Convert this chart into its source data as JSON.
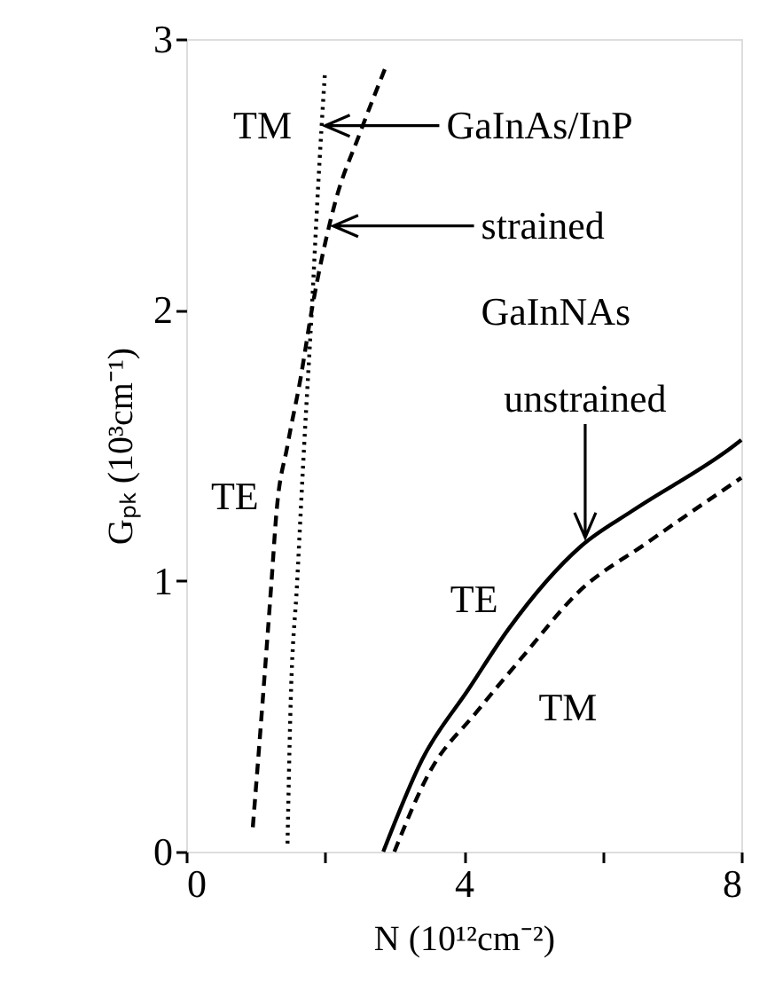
{
  "chart_data": {
    "type": "line",
    "xlabel": "N (10¹²cm⁻²)",
    "ylabel": "Gₚₖ (10³cm⁻¹)",
    "xlim": [
      0,
      8
    ],
    "ylim": [
      0,
      3
    ],
    "xticks": [
      0,
      {
        "value": 2,
        "label": null
      },
      4,
      {
        "value": 6,
        "label": null
      },
      8
    ],
    "yticks": [
      0,
      1,
      2,
      3
    ],
    "grid": false,
    "legend": false,
    "marker": "none",
    "series": [
      {
        "color": "#000000",
        "line_style": "dotted",
        "x": [
          1.46,
          1.5,
          1.6,
          1.7,
          1.81,
          1.9,
          2.0
        ],
        "values": [
          0.03,
          0.5,
          1.0,
          1.5,
          2.0,
          2.45,
          2.88
        ]
      },
      {
        "color": "#000000",
        "line_style": "dashed",
        "x": [
          0.96,
          1.1,
          1.23,
          1.3,
          1.46,
          1.65,
          1.81,
          2.15,
          2.5,
          2.88
        ],
        "values": [
          0.09,
          0.55,
          1.0,
          1.25,
          1.5,
          1.75,
          2.0,
          2.4,
          2.65,
          2.9
        ]
      },
      {
        "color": "#000000",
        "line_style": "solid",
        "x": [
          2.84,
          3.4,
          4.07,
          4.64,
          5.7,
          6.44,
          7.9,
          8.0
        ],
        "values": [
          0.0,
          0.34,
          0.6,
          0.82,
          1.13,
          1.26,
          1.5,
          1.52
        ]
      },
      {
        "color": "#000000",
        "line_style": "dashed",
        "x": [
          3.0,
          3.5,
          4.2,
          4.85,
          5.66,
          6.64,
          7.77,
          8.0
        ],
        "values": [
          0.0,
          0.29,
          0.52,
          0.72,
          0.96,
          1.14,
          1.34,
          1.38
        ]
      }
    ],
    "annotations": [
      "TM",
      "TE",
      "TE",
      "TM",
      "GaInAs/InP",
      "strained",
      "GaInNAs",
      "unstrained"
    ]
  }
}
